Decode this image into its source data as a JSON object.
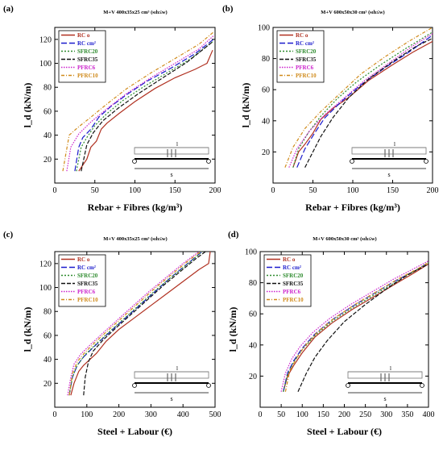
{
  "figure": {
    "panels": [
      "(a)",
      "(b)",
      "(c)",
      "(d)"
    ]
  },
  "colors": {
    "RC o": "#b03020",
    "RC cm2": "#1a1acc",
    "SFRC20": "#2e8b2e",
    "SFRC35": "#111111",
    "PFRC6": "#cc22cc",
    "PFRC10": "#d08a1a"
  },
  "inset": {
    "load_label": "l",
    "span_label": "s"
  },
  "chart_data": [
    {
      "type": "line",
      "panel": "(a)",
      "title": "M+V 400x35x25 cm³ (sₗh≤w)",
      "xlabel": "Rebar + Fibres  (kg/m³)",
      "ylabel": "l_d (kN/m)",
      "xlim": [
        0,
        200
      ],
      "ylim": [
        0,
        130
      ],
      "xticks": [
        0,
        50,
        100,
        150,
        200
      ],
      "yticks": [
        20,
        40,
        60,
        80,
        100,
        120
      ],
      "legend_position": "top-left",
      "series": [
        {
          "name": "RC o",
          "x": [
            30,
            40,
            45,
            52,
            58,
            65,
            80,
            100,
            125,
            150,
            175,
            190,
            197
          ],
          "y": [
            10,
            20,
            30,
            35,
            45,
            50,
            58,
            68,
            79,
            88,
            95,
            100,
            111
          ]
        },
        {
          "name": "RC cm²",
          "x": [
            25,
            30,
            35,
            45,
            55,
            70,
            90,
            115,
            145,
            175,
            198
          ],
          "y": [
            10,
            30,
            38,
            45,
            55,
            64,
            74,
            85,
            96,
            108,
            120
          ]
        },
        {
          "name": "SFRC20",
          "x": [
            27,
            33,
            40,
            50,
            65,
            85,
            110,
            140,
            170,
            197
          ],
          "y": [
            10,
            30,
            38,
            48,
            58,
            69,
            80,
            92,
            104,
            118
          ]
        },
        {
          "name": "SFRC35",
          "x": [
            33,
            40,
            48,
            60,
            80,
            105,
            135,
            165,
            197
          ],
          "y": [
            10,
            32,
            42,
            52,
            63,
            75,
            88,
            101,
            118
          ]
        },
        {
          "name": "PFRC6",
          "x": [
            15,
            20,
            30,
            45,
            65,
            90,
            120,
            150,
            180,
            198
          ],
          "y": [
            10,
            30,
            41,
            51,
            62,
            75,
            88,
            100,
            112,
            123
          ]
        },
        {
          "name": "PFRC10",
          "x": [
            10,
            18,
            28,
            45,
            65,
            90,
            120,
            150,
            180,
            198
          ],
          "y": [
            10,
            40,
            46,
            55,
            66,
            79,
            92,
            104,
            116,
            126
          ]
        }
      ]
    },
    {
      "type": "line",
      "panel": "(b)",
      "title": "M+V 600x50x30 cm³ (sₗh≤w)",
      "xlabel": "Rebar + Fibres  (kg/m³)",
      "ylabel": "l_d (kN/m)",
      "xlim": [
        0,
        200
      ],
      "ylim": [
        0,
        100
      ],
      "xticks": [
        0,
        50,
        100,
        150,
        200
      ],
      "yticks": [
        20,
        40,
        60,
        80,
        100
      ],
      "legend_position": "top-left",
      "series": [
        {
          "name": "RC o",
          "x": [
            25,
            32,
            40,
            50,
            60,
            75,
            95,
            120,
            150,
            175,
            200
          ],
          "y": [
            10,
            20,
            25,
            32,
            41,
            48,
            55,
            66,
            76,
            84,
            91
          ]
        },
        {
          "name": "RC cm²",
          "x": [
            30,
            40,
            52,
            65,
            85,
            110,
            140,
            170,
            200
          ],
          "y": [
            10,
            22,
            32,
            42,
            52,
            63,
            74,
            84,
            95
          ]
        },
        {
          "name": "SFRC20",
          "x": [
            25,
            32,
            45,
            60,
            80,
            105,
            135,
            165,
            200
          ],
          "y": [
            10,
            22,
            33,
            43,
            54,
            65,
            76,
            86,
            97
          ]
        },
        {
          "name": "SFRC35",
          "x": [
            40,
            50,
            60,
            75,
            95,
            120,
            150,
            180,
            200
          ],
          "y": [
            10,
            20,
            30,
            42,
            55,
            67,
            78,
            88,
            93
          ]
        },
        {
          "name": "PFRC6",
          "x": [
            20,
            30,
            45,
            65,
            90,
            115,
            145,
            175,
            200
          ],
          "y": [
            10,
            22,
            33,
            44,
            55,
            66,
            77,
            88,
            96
          ]
        },
        {
          "name": "PFRC10",
          "x": [
            15,
            25,
            40,
            60,
            85,
            110,
            140,
            170,
            200
          ],
          "y": [
            10,
            23,
            35,
            46,
            58,
            70,
            81,
            91,
            100
          ]
        }
      ]
    },
    {
      "type": "line",
      "panel": "(c)",
      "title": "M+V 400x35x25 cm³ (sₗh≤w)",
      "xlabel": "Steel + Labour (€)",
      "ylabel": "l_d (kN/m)",
      "xlim": [
        0,
        500
      ],
      "ylim": [
        0,
        130
      ],
      "xticks": [
        0,
        100,
        200,
        300,
        400,
        500
      ],
      "yticks": [
        20,
        40,
        60,
        80,
        100,
        120
      ],
      "legend_position": "top-left",
      "series": [
        {
          "name": "RC o",
          "x": [
            50,
            60,
            75,
            90,
            110,
            130,
            160,
            200,
            250,
            300,
            350,
            400,
            450,
            480,
            485
          ],
          "y": [
            10,
            20,
            30,
            35,
            40,
            45,
            55,
            65,
            75,
            85,
            95,
            105,
            115,
            120,
            130
          ]
        },
        {
          "name": "RC cm²",
          "x": [
            45,
            55,
            70,
            90,
            120,
            160,
            210,
            260,
            310,
            360,
            410,
            460
          ],
          "y": [
            10,
            25,
            35,
            42,
            50,
            60,
            72,
            84,
            96,
            108,
            119,
            130
          ]
        },
        {
          "name": "SFRC20",
          "x": [
            45,
            55,
            70,
            95,
            130,
            170,
            220,
            270,
            320,
            370,
            420,
            460
          ],
          "y": [
            10,
            25,
            35,
            44,
            53,
            63,
            75,
            87,
            99,
            110,
            121,
            130
          ]
        },
        {
          "name": "SFRC35",
          "x": [
            90,
            95,
            105,
            120,
            150,
            190,
            240,
            290,
            340,
            390,
            440,
            470
          ],
          "y": [
            10,
            25,
            38,
            47,
            56,
            66,
            78,
            90,
            102,
            113,
            124,
            130
          ]
        },
        {
          "name": "PFRC6",
          "x": [
            40,
            50,
            60,
            80,
            110,
            150,
            200,
            250,
            300,
            350,
            400,
            450
          ],
          "y": [
            10,
            25,
            36,
            44,
            52,
            62,
            74,
            86,
            98,
            109,
            120,
            130
          ]
        },
        {
          "name": "PFRC10",
          "x": [
            45,
            55,
            70,
            95,
            125,
            165,
            215,
            265,
            315,
            365,
            415,
            455
          ],
          "y": [
            10,
            28,
            38,
            46,
            54,
            64,
            76,
            88,
            100,
            111,
            122,
            130
          ]
        }
      ]
    },
    {
      "type": "line",
      "panel": "(d)",
      "title": "M+V 600x50x30 cm³ (sₗh≤w)",
      "xlabel": "Steel + Labour (€)",
      "ylabel": "l_d (kN/m)",
      "xlim": [
        0,
        400
      ],
      "ylim": [
        0,
        100
      ],
      "xticks": [
        0,
        50,
        100,
        150,
        200,
        250,
        300,
        350,
        400
      ],
      "yticks": [
        20,
        40,
        60,
        80,
        100
      ],
      "legend_position": "top-left",
      "series": [
        {
          "name": "RC o",
          "x": [
            55,
            65,
            80,
            100,
            130,
            170,
            220,
            270,
            320,
            370,
            400
          ],
          "y": [
            10,
            20,
            27,
            35,
            45,
            54,
            63,
            71,
            79,
            87,
            92
          ]
        },
        {
          "name": "RC cm²",
          "x": [
            55,
            65,
            80,
            100,
            130,
            170,
            220,
            270,
            320,
            370,
            400
          ],
          "y": [
            10,
            22,
            30,
            38,
            47,
            56,
            65,
            73,
            81,
            88,
            93
          ]
        },
        {
          "name": "SFRC20",
          "x": [
            55,
            65,
            80,
            100,
            130,
            170,
            220,
            270,
            320,
            370,
            400
          ],
          "y": [
            10,
            21,
            29,
            37,
            46,
            55,
            64,
            72,
            80,
            88,
            93
          ]
        },
        {
          "name": "SFRC35",
          "x": [
            90,
            110,
            130,
            160,
            200,
            250,
            300,
            350,
            400
          ],
          "y": [
            10,
            22,
            32,
            43,
            55,
            66,
            76,
            85,
            92
          ]
        },
        {
          "name": "PFRC6",
          "x": [
            50,
            60,
            75,
            95,
            125,
            165,
            215,
            265,
            315,
            365,
            400
          ],
          "y": [
            10,
            22,
            31,
            39,
            48,
            57,
            66,
            74,
            82,
            89,
            94
          ]
        },
        {
          "name": "PFRC10",
          "x": [
            60,
            70,
            85,
            105,
            135,
            175,
            225,
            275,
            325,
            375,
            400
          ],
          "y": [
            10,
            23,
            31,
            39,
            48,
            57,
            66,
            74,
            82,
            89,
            93
          ]
        }
      ]
    }
  ]
}
